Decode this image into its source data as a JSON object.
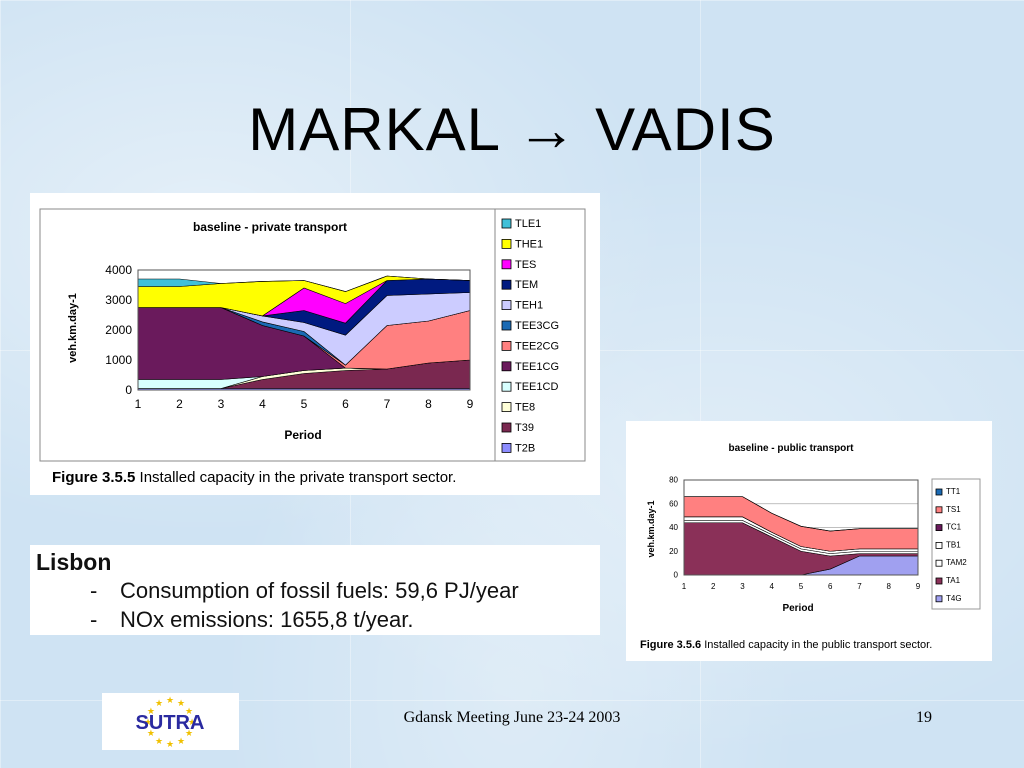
{
  "slide": {
    "title": "MARKAL → VADIS",
    "footer": "Gdansk Meeting June 23-24 2003",
    "page_number": "19",
    "logo_text": "SUTRA"
  },
  "lisbon": {
    "title": "Lisbon",
    "bullets": [
      {
        "dash": "-",
        "text": "Consumption of fossil fuels: 59,6 PJ/year"
      },
      {
        "dash": "-",
        "text": "NOx emissions: 1655,8 t/year."
      }
    ]
  },
  "chart_data": [
    {
      "type": "area",
      "title": "baseline - private transport",
      "xlabel": "Period",
      "ylabel": "veh.km.day-1",
      "caption_bold": "Figure 3.5.5",
      "caption": "Installed capacity in the private transport sector.",
      "x": [
        1,
        2,
        3,
        4,
        5,
        6,
        7,
        8,
        9
      ],
      "ylim": [
        0,
        4000
      ],
      "yticks": [
        0,
        1000,
        2000,
        3000,
        4000
      ],
      "stacked": true,
      "legend_position": "right",
      "legend": [
        "TLE1",
        "THE1",
        "TES",
        "TEM",
        "TEH1",
        "TEE3CG",
        "TEE2CG",
        "TEE1CG",
        "TEE1CD",
        "TE8",
        "T39",
        "T2B"
      ],
      "series": [
        {
          "name": "T2B",
          "color": "#8c8cff",
          "values": [
            50,
            50,
            50,
            50,
            50,
            50,
            50,
            50,
            50
          ]
        },
        {
          "name": "T39",
          "color": "#7a2850",
          "values": [
            0,
            0,
            0,
            300,
            500,
            600,
            650,
            850,
            950
          ]
        },
        {
          "name": "TE8",
          "color": "#ffffd8",
          "values": [
            0,
            0,
            0,
            100,
            100,
            80,
            0,
            0,
            0
          ]
        },
        {
          "name": "TEE1CD",
          "color": "#d8ffff",
          "values": [
            300,
            300,
            300,
            0,
            0,
            0,
            0,
            0,
            0
          ]
        },
        {
          "name": "TEE1CG",
          "color": "#6a1a5c",
          "values": [
            2400,
            2400,
            2400,
            1700,
            1150,
            0,
            0,
            0,
            0
          ]
        },
        {
          "name": "TEE2CG",
          "color": "#ff8080",
          "values": [
            0,
            0,
            0,
            0,
            0,
            100,
            1450,
            1400,
            1650
          ]
        },
        {
          "name": "TEE3CG",
          "color": "#1a6ab4",
          "values": [
            0,
            0,
            0,
            120,
            150,
            0,
            0,
            0,
            0
          ]
        },
        {
          "name": "TEH1",
          "color": "#ccccff",
          "values": [
            0,
            0,
            0,
            200,
            300,
            1000,
            1000,
            900,
            600
          ]
        },
        {
          "name": "TEM",
          "color": "#001a80",
          "values": [
            0,
            0,
            0,
            0,
            400,
            400,
            500,
            500,
            400
          ]
        },
        {
          "name": "TES",
          "color": "#ff00ff",
          "values": [
            0,
            0,
            0,
            0,
            750,
            650,
            0,
            0,
            0
          ]
        },
        {
          "name": "THE1",
          "color": "#ffff00",
          "values": [
            700,
            700,
            800,
            1150,
            250,
            400,
            150,
            0,
            0
          ]
        },
        {
          "name": "TLE1",
          "color": "#40c0d8",
          "values": [
            250,
            250,
            0,
            0,
            0,
            0,
            0,
            0,
            0
          ]
        }
      ]
    },
    {
      "type": "area",
      "title": "baseline - public transport",
      "xlabel": "Period",
      "ylabel": "veh.km.day-1",
      "caption_bold": "Figure 3.5.6",
      "caption": "Installed capacity in the public transport sector.",
      "x": [
        1,
        2,
        3,
        4,
        5,
        6,
        7,
        8,
        9
      ],
      "ylim": [
        0,
        80
      ],
      "yticks": [
        0,
        20,
        40,
        60,
        80
      ],
      "stacked": true,
      "legend_position": "right",
      "legend": [
        "TT1",
        "TS1",
        "TC1",
        "TB1",
        "TAM2",
        "TA1",
        "T4G"
      ],
      "series": [
        {
          "name": "T4G",
          "color": "#a0a0f0",
          "values": [
            0,
            0,
            0,
            0,
            0,
            5,
            16,
            16,
            16
          ]
        },
        {
          "name": "TA1",
          "color": "#8a3058",
          "values": [
            44,
            44,
            44,
            32,
            20,
            11,
            2,
            2,
            2
          ]
        },
        {
          "name": "TAM2",
          "color": "#ffffff",
          "values": [
            2,
            2,
            2,
            2,
            2,
            2,
            2,
            2,
            2
          ]
        },
        {
          "name": "TB1",
          "color": "#ffffff",
          "values": [
            3,
            3,
            3,
            2,
            2,
            2,
            2,
            2,
            2
          ]
        },
        {
          "name": "TC1",
          "color": "#6a1a5c",
          "values": [
            0,
            0,
            0,
            0,
            0,
            0,
            0,
            0,
            0
          ]
        },
        {
          "name": "TS1",
          "color": "#ff8080",
          "values": [
            17,
            17,
            17,
            16,
            17,
            17,
            17,
            17,
            17
          ]
        },
        {
          "name": "TT1",
          "color": "#1a6ab4",
          "values": [
            0,
            0,
            0,
            0,
            0,
            0,
            0,
            0,
            0
          ]
        }
      ]
    }
  ]
}
